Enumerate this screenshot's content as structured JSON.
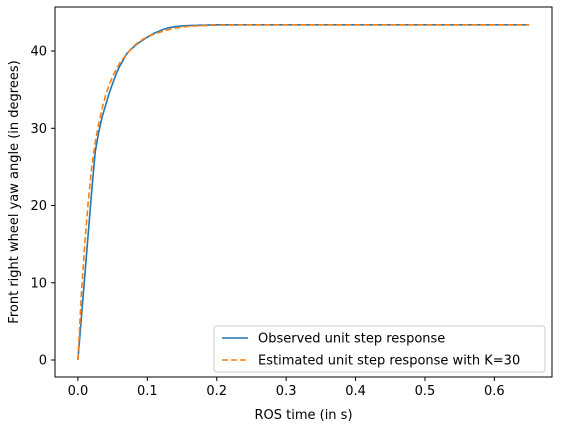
{
  "chart_data": {
    "type": "line",
    "xlabel": "ROS time (in s)",
    "ylabel": "Front right wheel yaw angle (in degrees)",
    "xlim": [
      -0.033,
      0.683
    ],
    "ylim": [
      -2.2,
      45.7
    ],
    "xticks": [
      {
        "value": 0.0,
        "label": "0.0"
      },
      {
        "value": 0.1,
        "label": "0.1"
      },
      {
        "value": 0.2,
        "label": "0.2"
      },
      {
        "value": 0.3,
        "label": "0.3"
      },
      {
        "value": 0.4,
        "label": "0.4"
      },
      {
        "value": 0.5,
        "label": "0.5"
      },
      {
        "value": 0.6,
        "label": "0.6"
      }
    ],
    "yticks": [
      {
        "value": 0,
        "label": "0"
      },
      {
        "value": 10,
        "label": "10"
      },
      {
        "value": 20,
        "label": "20"
      },
      {
        "value": 30,
        "label": "30"
      },
      {
        "value": 40,
        "label": "40"
      }
    ],
    "grid": false,
    "legend_position": "lower-right",
    "series": [
      {
        "name": "Observed unit step response",
        "color": "#1f77b4",
        "style": "solid",
        "x": [
          0.0,
          0.005,
          0.01,
          0.015,
          0.02,
          0.025,
          0.03,
          0.035,
          0.04,
          0.045,
          0.05,
          0.055,
          0.06,
          0.065,
          0.07,
          0.075,
          0.08,
          0.085,
          0.09,
          0.095,
          0.1,
          0.11,
          0.12,
          0.13,
          0.14,
          0.15,
          0.16,
          0.18,
          0.2,
          0.25,
          0.3,
          0.4,
          0.5,
          0.6,
          0.65
        ],
        "y": [
          0.0,
          5.5,
          11.0,
          16.5,
          22.0,
          27.0,
          29.5,
          31.5,
          33.0,
          34.5,
          35.8,
          37.0,
          38.0,
          38.8,
          39.6,
          40.1,
          40.5,
          40.9,
          41.2,
          41.5,
          41.8,
          42.3,
          42.7,
          43.0,
          43.15,
          43.25,
          43.3,
          43.35,
          43.4,
          43.4,
          43.4,
          43.4,
          43.4,
          43.4,
          43.4
        ]
      },
      {
        "name": "Estimated unit step response with K=30",
        "color": "#ff7f0e",
        "style": "dashed",
        "x": [
          0.0,
          0.005,
          0.01,
          0.015,
          0.02,
          0.025,
          0.03,
          0.035,
          0.04,
          0.045,
          0.05,
          0.055,
          0.06,
          0.065,
          0.07,
          0.075,
          0.08,
          0.085,
          0.09,
          0.095,
          0.1,
          0.11,
          0.12,
          0.13,
          0.14,
          0.15,
          0.16,
          0.18,
          0.2,
          0.25,
          0.3,
          0.4,
          0.5,
          0.6,
          0.65
        ],
        "y": [
          0.0,
          8.5,
          15.2,
          20.6,
          25.0,
          28.2,
          30.6,
          32.6,
          34.3,
          35.6,
          36.7,
          37.6,
          38.4,
          39.0,
          39.6,
          40.1,
          40.6,
          41.0,
          41.3,
          41.6,
          41.8,
          42.2,
          42.5,
          42.75,
          42.95,
          43.1,
          43.2,
          43.3,
          43.35,
          43.4,
          43.4,
          43.4,
          43.4,
          43.4,
          43.4
        ]
      }
    ]
  }
}
